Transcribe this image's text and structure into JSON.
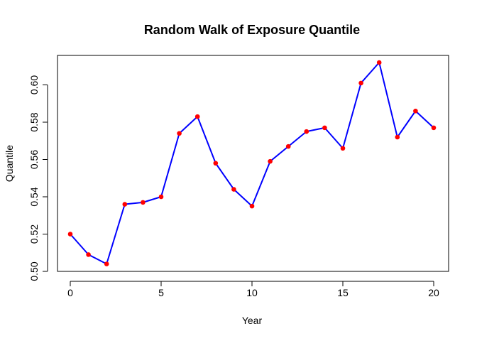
{
  "colors": {
    "line": "#0000ff",
    "point": "#ff0000",
    "axis": "#000000"
  },
  "chart_data": {
    "type": "line",
    "title": "Random Walk of Exposure Quantile",
    "xlabel": "Year",
    "ylabel": "Quantile",
    "xlim": [
      0,
      20
    ],
    "ylim": [
      0.5,
      0.61
    ],
    "grid": false,
    "x_ticks": [
      0,
      5,
      10,
      15,
      20
    ],
    "x_tick_labels": [
      "0",
      "5",
      "10",
      "15",
      "20"
    ],
    "y_ticks": [
      0.5,
      0.52,
      0.54,
      0.56,
      0.58,
      0.6
    ],
    "y_tick_labels": [
      "0.50",
      "0.52",
      "0.54",
      "0.56",
      "0.58",
      "0.60"
    ],
    "series": [
      {
        "x": [
          0,
          1,
          2,
          3,
          4,
          5,
          6,
          7,
          8,
          9,
          10,
          11,
          12,
          13,
          14,
          15,
          16,
          17,
          18,
          19,
          20
        ],
        "values": [
          0.52,
          0.509,
          0.504,
          0.536,
          0.537,
          0.54,
          0.574,
          0.583,
          0.558,
          0.544,
          0.535,
          0.559,
          0.567,
          0.575,
          0.577,
          0.566,
          0.601,
          0.612,
          0.572,
          0.586,
          0.577
        ]
      }
    ]
  }
}
